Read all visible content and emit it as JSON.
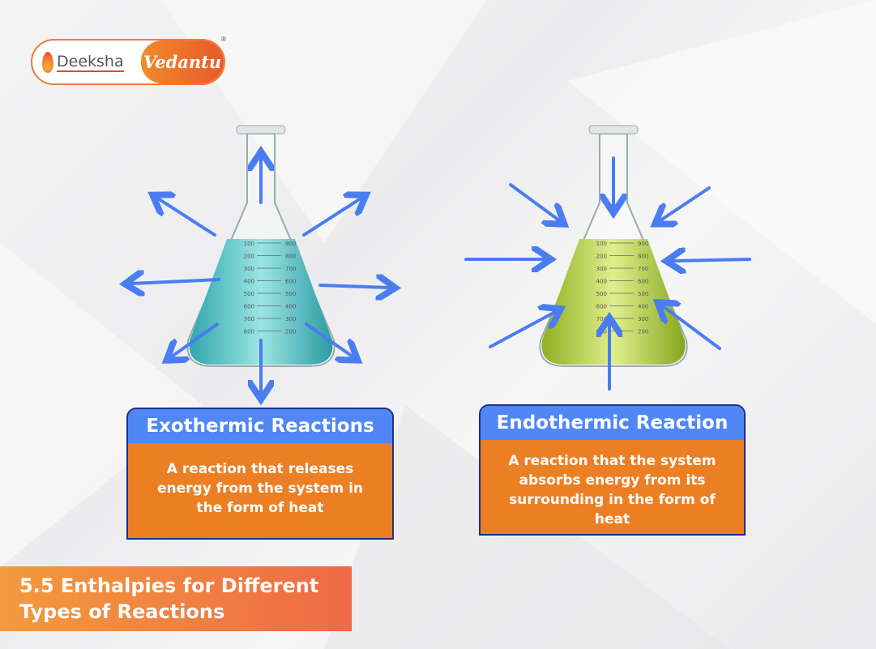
{
  "logo": {
    "left_text": "Deeksha",
    "right_text": "Vedantu",
    "registered": "®"
  },
  "exothermic": {
    "title": "Exothermic Reactions",
    "description": "A reaction that releases energy from the system in the form of heat",
    "liquid_color": "#5fc8c8",
    "arrow_direction": "outward"
  },
  "endothermic": {
    "title": "Endothermic Reaction",
    "description": "A reaction that the system absorbs energy from its surrounding in the form of heat",
    "liquid_color": "#b8d24a",
    "arrow_direction": "inward"
  },
  "flask_scale": {
    "left": [
      "100",
      "200",
      "300",
      "400",
      "500",
      "600",
      "700",
      "800"
    ],
    "right": [
      "900",
      "800",
      "700",
      "600",
      "500",
      "400",
      "300",
      "200"
    ]
  },
  "banner": {
    "line1": "5.5 Enthalpies for Different",
    "line2": "Types of Reactions"
  },
  "colors": {
    "header_blue": "#5087f5",
    "box_orange": "#ec7f24",
    "arrow_blue": "#4a7df0",
    "border_navy": "#1e2f8c"
  }
}
